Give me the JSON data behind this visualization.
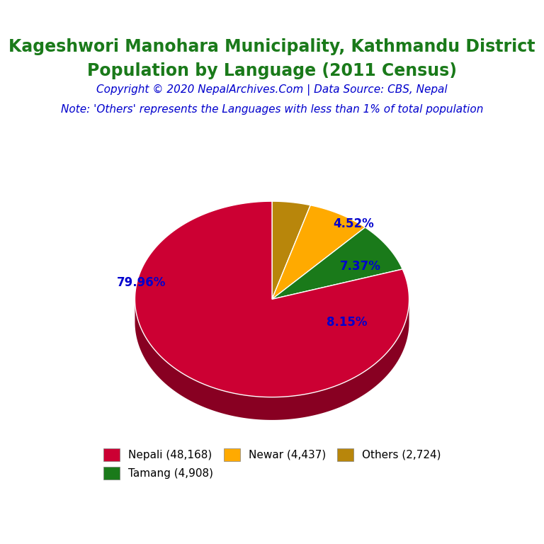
{
  "title_line1": "Kageshwori Manohara Municipality, Kathmandu District",
  "title_line2": "Population by Language (2011 Census)",
  "title_color": "#1a7a1a",
  "copyright_text": "Copyright © 2020 NepalArchives.Com | Data Source: CBS, Nepal",
  "copyright_color": "#0000cd",
  "note_text": "Note: 'Others' represents the Languages with less than 1% of total population",
  "note_color": "#0000cd",
  "labels": [
    "Nepali (48,168)",
    "Tamang (4,908)",
    "Newar (4,437)",
    "Others (2,724)"
  ],
  "values": [
    48168,
    4908,
    4437,
    2724
  ],
  "percentages": [
    "79.96%",
    "8.15%",
    "7.37%",
    "4.52%"
  ],
  "colors": [
    "#cc0033",
    "#1a7a1a",
    "#ffaa00",
    "#b8860b"
  ],
  "shadow_colors": [
    "#880022",
    "#0d4d0d",
    "#cc8800",
    "#8b6508"
  ],
  "background_color": "#ffffff",
  "pct_color": "#0000cd",
  "startangle": 90,
  "legend_labels": [
    "Nepali (48,168)",
    "Tamang (4,908)",
    "Newar (4,437)",
    "Others (2,724)"
  ]
}
